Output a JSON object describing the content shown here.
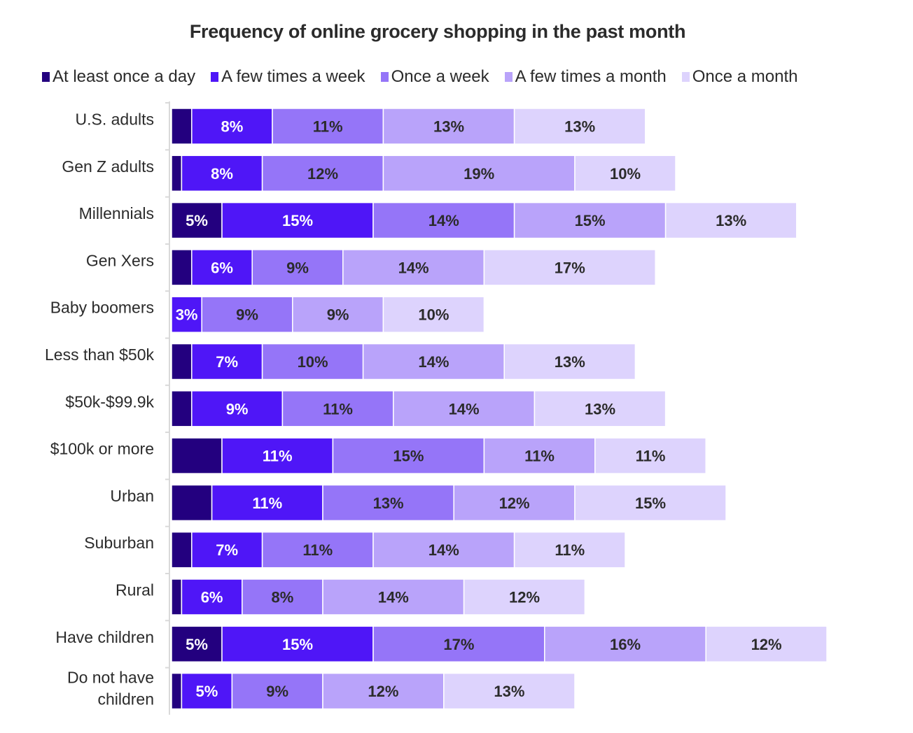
{
  "chart_data": {
    "type": "bar",
    "orientation": "horizontal",
    "stacked": true,
    "title": "Frequency of online grocery shopping in the past month",
    "xlabel": "",
    "ylabel": "",
    "unit": "%",
    "legend_position": "top",
    "grid": false,
    "categories": [
      "U.S. adults",
      "Gen Z adults",
      "Millennials",
      "Gen Xers",
      "Baby boomers",
      "Less than $50k",
      "$50k-$99.9k",
      "$100k or more",
      "Urban",
      "Suburban",
      "Rural",
      "Have children",
      "Do not have children"
    ],
    "category_lines": [
      [
        "U.S. adults"
      ],
      [
        "Gen Z adults"
      ],
      [
        "Millennials"
      ],
      [
        "Gen Xers"
      ],
      [
        "Baby boomers"
      ],
      [
        "Less than $50k"
      ],
      [
        "$50k-$99.9k"
      ],
      [
        "$100k or more"
      ],
      [
        "Urban"
      ],
      [
        "Suburban"
      ],
      [
        "Rural"
      ],
      [
        "Have children"
      ],
      [
        "Do not have",
        "children"
      ]
    ],
    "series": [
      {
        "name": "At least once a day",
        "color": "#23007f",
        "label_color": "#ffffff",
        "values": [
          2,
          1,
          5,
          2,
          0,
          2,
          2,
          5,
          4,
          2,
          1,
          5,
          1
        ],
        "labeled": [
          false,
          false,
          true,
          false,
          false,
          false,
          false,
          false,
          false,
          false,
          false,
          true,
          false
        ]
      },
      {
        "name": "A few times a week",
        "color": "#4f16f7",
        "label_color": "#ffffff",
        "values": [
          8,
          8,
          15,
          6,
          3,
          7,
          9,
          11,
          11,
          7,
          6,
          15,
          5
        ],
        "labeled": [
          true,
          true,
          true,
          true,
          true,
          true,
          true,
          true,
          true,
          true,
          true,
          true,
          true
        ]
      },
      {
        "name": "Once a week",
        "color": "#9575f8",
        "label_color": "#2b2b2b",
        "values": [
          11,
          12,
          14,
          9,
          9,
          10,
          11,
          15,
          13,
          11,
          8,
          17,
          9
        ],
        "labeled": [
          true,
          true,
          true,
          true,
          true,
          true,
          true,
          true,
          true,
          true,
          true,
          true,
          true
        ]
      },
      {
        "name": "A few times a month",
        "color": "#b9a3fa",
        "label_color": "#2b2b2b",
        "values": [
          13,
          19,
          15,
          14,
          9,
          14,
          14,
          11,
          12,
          14,
          14,
          16,
          12
        ],
        "labeled": [
          true,
          true,
          true,
          true,
          true,
          true,
          true,
          true,
          true,
          true,
          true,
          true,
          true
        ]
      },
      {
        "name": "Once a month",
        "color": "#ddd3fd",
        "label_color": "#2b2b2b",
        "values": [
          13,
          10,
          13,
          17,
          10,
          13,
          13,
          11,
          15,
          11,
          12,
          12,
          13
        ],
        "labeled": [
          true,
          true,
          true,
          true,
          true,
          true,
          true,
          true,
          true,
          true,
          true,
          true,
          true
        ]
      }
    ]
  }
}
